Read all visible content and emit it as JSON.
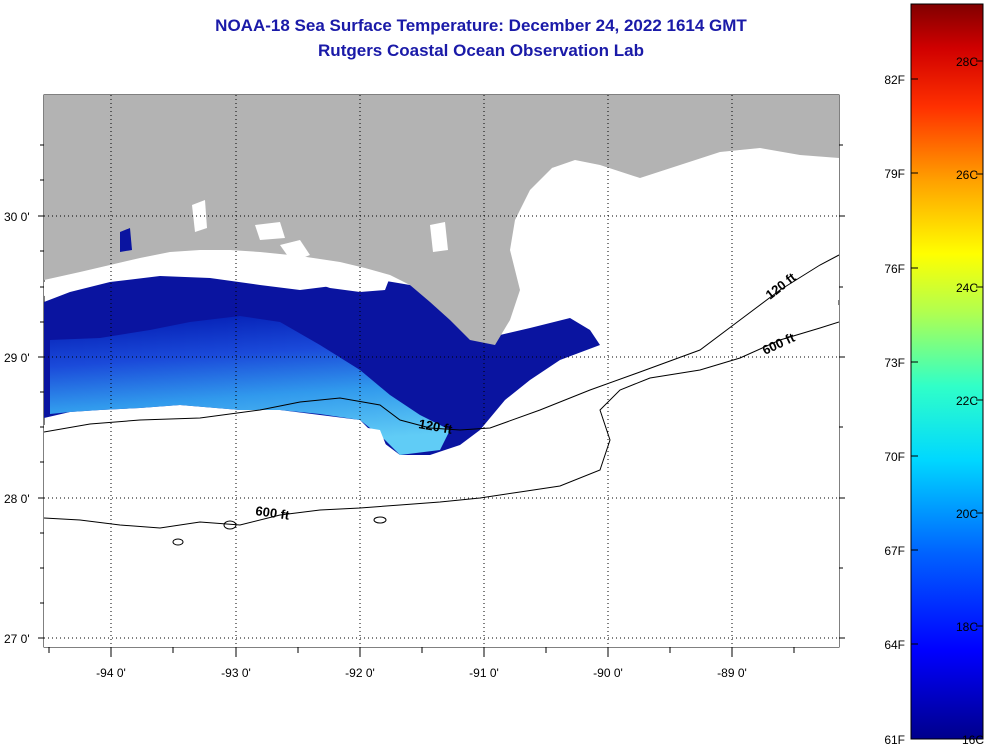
{
  "title": "NOAA-18 Sea Surface Temperature:  December 24, 2022 1614 GMT",
  "subtitle": "Rutgers Coastal Ocean Observation Lab",
  "map": {
    "lon_labels": [
      "-94 0'",
      "-93 0'",
      "-92 0'",
      "-91 0'",
      "-90 0'",
      "-89 0'"
    ],
    "lat_labels": [
      "30 0'",
      "29 0'",
      "28 0'",
      "27 0'"
    ],
    "contour_labels": [
      "600 ft",
      "120 ft",
      "120 ft",
      "600 ft"
    ],
    "land_color": "#b3b3b3",
    "cloud_color": "#ffffff"
  },
  "colorbar": {
    "fahrenheit_labels": [
      "82F",
      "79F",
      "76F",
      "73F",
      "70F",
      "67F",
      "64F",
      "61F"
    ],
    "celsius_labels": [
      "28C",
      "26C",
      "24C",
      "22C",
      "20C",
      "18C",
      "16C"
    ],
    "colors": [
      "#00008b",
      "#0000ff",
      "#0080ff",
      "#00e5ff",
      "#40ffbf",
      "#bfff40",
      "#ffff00",
      "#ffa000",
      "#ff3000",
      "#c00000",
      "#800000"
    ]
  }
}
